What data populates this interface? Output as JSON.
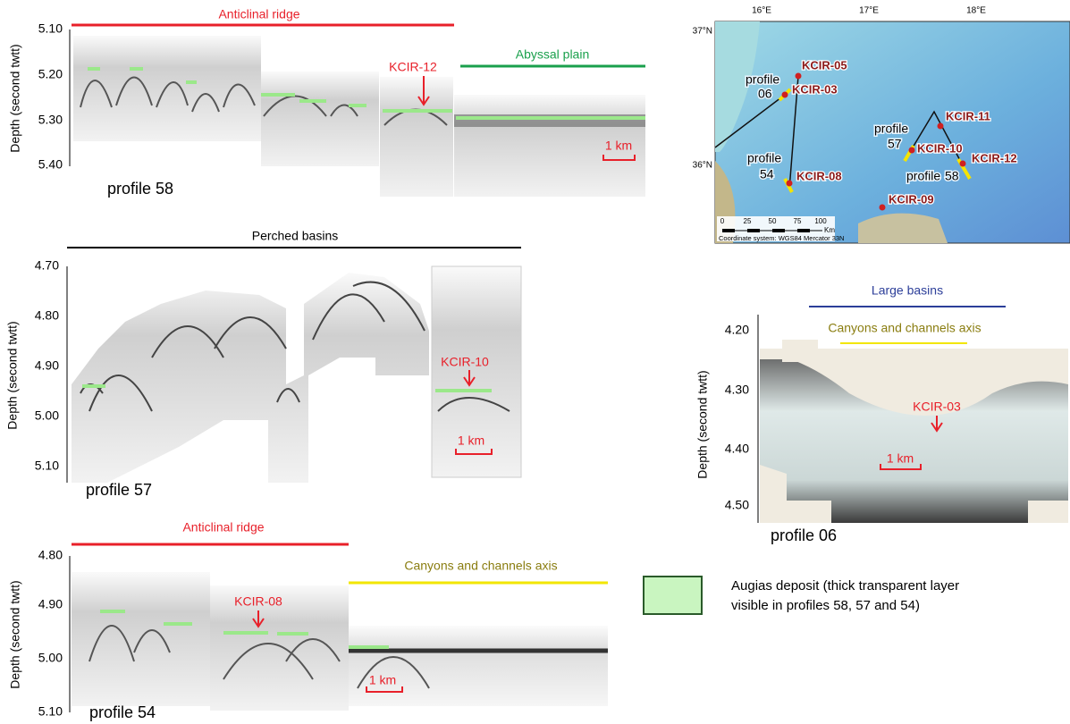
{
  "profiles": [
    {
      "name": "profile 58",
      "y_label": "Depth (second twtt)",
      "yticks": [
        "5.10",
        "5.20",
        "5.30",
        "5.40"
      ],
      "headers": [
        "Anticlinal ridge",
        "Abyssal plain"
      ],
      "core": "KCIR-12",
      "scale": "1 km"
    },
    {
      "name": "profile 57",
      "y_label": "Depth (second twtt)",
      "yticks": [
        "4.70",
        "4.80",
        "4.90",
        "5.00",
        "5.10"
      ],
      "headers": [
        "Perched basins"
      ],
      "core": "KCIR-10",
      "scale": "1 km"
    },
    {
      "name": "profile 54",
      "y_label": "Depth (second twtt)",
      "yticks": [
        "4.80",
        "4.90",
        "5.00",
        "5.10"
      ],
      "headers": [
        "Anticlinal ridge",
        "Canyons and channels axis"
      ],
      "core": "KCIR-08",
      "scale": "1 km"
    },
    {
      "name": "profile 06",
      "y_label": "Depth (second twtt)",
      "yticks": [
        "4.20",
        "4.30",
        "4.40",
        "4.50"
      ],
      "headers": [
        "Large basins",
        "Canyons and channels axis"
      ],
      "core": "KCIR-03",
      "scale": "1 km"
    }
  ],
  "map": {
    "lon_labels": [
      "16°E",
      "17°E",
      "18°E"
    ],
    "lat_labels": [
      "37°N",
      "36°N"
    ],
    "sites": [
      "KCIR-05",
      "KCIR-03",
      "KCIR-08",
      "KCIR-11",
      "KCIR-10",
      "KCIR-12",
      "KCIR-09"
    ],
    "profile_labels": [
      [
        "profile",
        "06"
      ],
      [
        "profile",
        "54"
      ],
      [
        "profile",
        "57"
      ],
      [
        "profile",
        "58"
      ]
    ],
    "scale_labels": [
      "0",
      "25",
      "50",
      "75",
      "100",
      "Km"
    ],
    "coordinate_note": "Coordinate system: WGS84 Mercator 33N"
  },
  "legend": {
    "lines": [
      "Augias deposit (thick transparent layer",
      "visible in profiles 58, 57 and 54)"
    ]
  }
}
